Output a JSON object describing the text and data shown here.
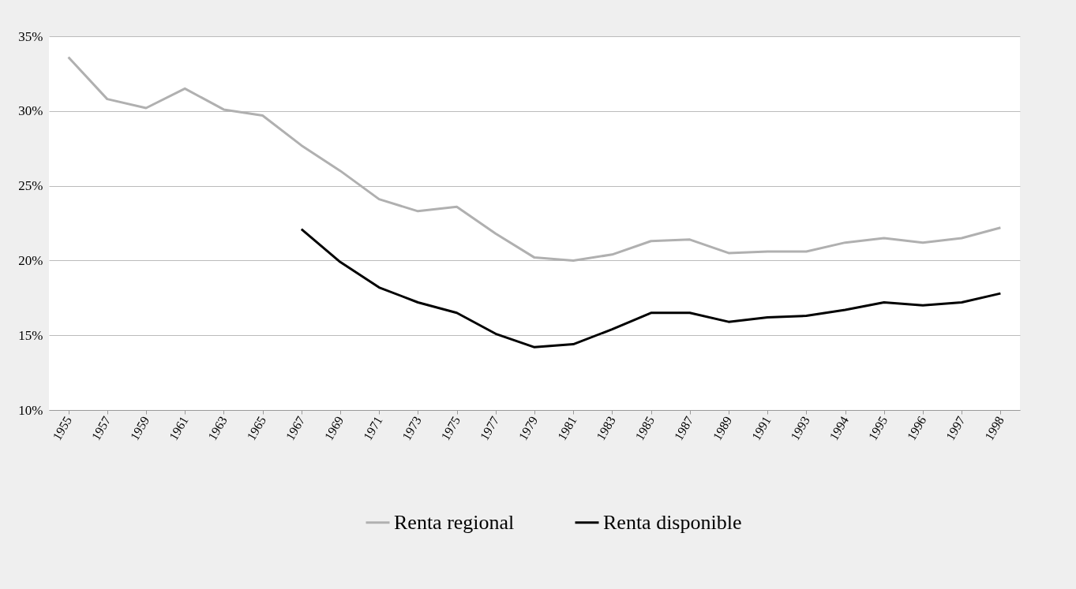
{
  "chart_data": {
    "type": "line",
    "categories": [
      "1955",
      "1957",
      "1959",
      "1961",
      "1963",
      "1965",
      "1967",
      "1969",
      "1971",
      "1973",
      "1975",
      "1977",
      "1979",
      "1981",
      "1983",
      "1985",
      "1987",
      "1989",
      "1991",
      "1993",
      "1994",
      "1995",
      "1996",
      "1997",
      "1998"
    ],
    "series": [
      {
        "name": "Renta regional",
        "color": "#b0b0b0",
        "values": [
          33.6,
          30.8,
          30.2,
          31.5,
          30.1,
          29.7,
          27.7,
          26.0,
          24.1,
          23.3,
          23.6,
          21.8,
          20.2,
          20.0,
          20.4,
          21.3,
          21.4,
          20.5,
          20.6,
          20.6,
          21.2,
          21.5,
          21.2,
          21.5,
          22.2
        ]
      },
      {
        "name": "Renta disponible",
        "color": "#000000",
        "values": [
          null,
          null,
          null,
          null,
          null,
          null,
          22.1,
          19.9,
          18.2,
          17.2,
          16.5,
          15.1,
          14.2,
          14.4,
          15.4,
          16.5,
          16.5,
          15.9,
          16.2,
          16.3,
          16.7,
          17.2,
          17.0,
          17.2,
          17.8
        ]
      }
    ],
    "ylim": [
      10,
      35
    ],
    "yticks": [
      {
        "value": 10,
        "label": "10%"
      },
      {
        "value": 15,
        "label": "15%"
      },
      {
        "value": 20,
        "label": "20%"
      },
      {
        "value": 25,
        "label": "25%"
      },
      {
        "value": 30,
        "label": "30%"
      },
      {
        "value": 35,
        "label": "35%"
      }
    ],
    "grid": "y",
    "legend": "bottom",
    "marker": "none",
    "line_style": "solid"
  }
}
